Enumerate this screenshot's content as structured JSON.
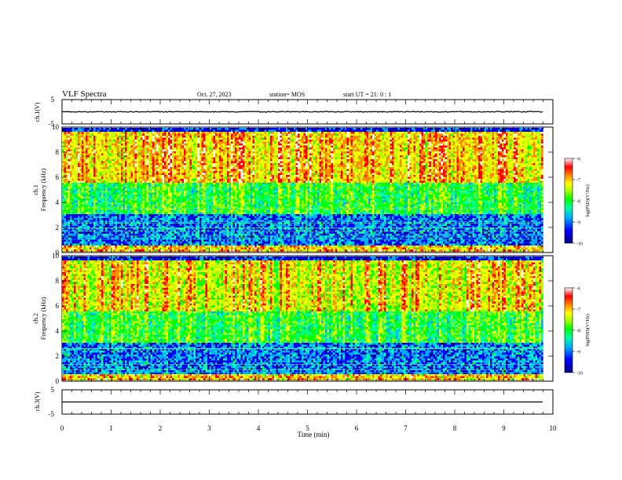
{
  "header": {
    "title": "VLF Spectra",
    "date": "Oct. 27, 2023",
    "station": "station= MOS",
    "start": "start  UT =   21: 0  : 1"
  },
  "chart_data": {
    "type": "heatmap",
    "title": "VLF Spectra",
    "xlabel": "Time  (min)",
    "xlim": [
      0,
      10
    ],
    "x_ticks": [
      "0",
      "1",
      "2",
      "3",
      "4",
      "5",
      "6",
      "7",
      "8",
      "9",
      "10"
    ],
    "panels": [
      {
        "id": "ch1-voltage",
        "type": "line",
        "ylabel": "ch.1(V)",
        "ylim": [
          -5,
          5
        ],
        "y_ticks": [
          "5",
          "-5"
        ],
        "level": 0
      },
      {
        "id": "ch1-spectrogram",
        "type": "heatmap",
        "ylabel_channel": "ch.1",
        "ylabel": "Frequency  (kHz)",
        "ylim": [
          0,
          10
        ],
        "y_ticks": [
          "0",
          "2",
          "4",
          "6",
          "8",
          "10"
        ],
        "colorbar": {
          "label": "log(PSD)(V²/Hz)",
          "range": [
            -10,
            -6
          ],
          "ticks": [
            "-6",
            "-7",
            "-8",
            "-9",
            "-10"
          ]
        }
      },
      {
        "id": "ch2-spectrogram",
        "type": "heatmap",
        "ylabel_channel": "ch.2",
        "ylabel": "Frequency  (kHz)",
        "ylim": [
          0,
          10
        ],
        "y_ticks": [
          "0",
          "2",
          "4",
          "6",
          "8",
          "10"
        ],
        "colorbar": {
          "label": "log(PSD)(V²/Hz)",
          "range": [
            -10,
            -6
          ],
          "ticks": [
            "-6",
            "-7",
            "-8",
            "-9",
            "-10"
          ]
        }
      },
      {
        "id": "ch3-voltage",
        "type": "line",
        "ylabel": "ch.3(V)",
        "ylim": [
          -5,
          5
        ],
        "y_ticks": [
          "5",
          "-5"
        ],
        "level": 0
      }
    ],
    "x_extent_min": 9.8,
    "colormap": [
      "#000080",
      "#0000ff",
      "#00aaff",
      "#00ffaa",
      "#00ff00",
      "#aaff00",
      "#ffff00",
      "#ff8800",
      "#ff0000",
      "#ffffff"
    ]
  }
}
